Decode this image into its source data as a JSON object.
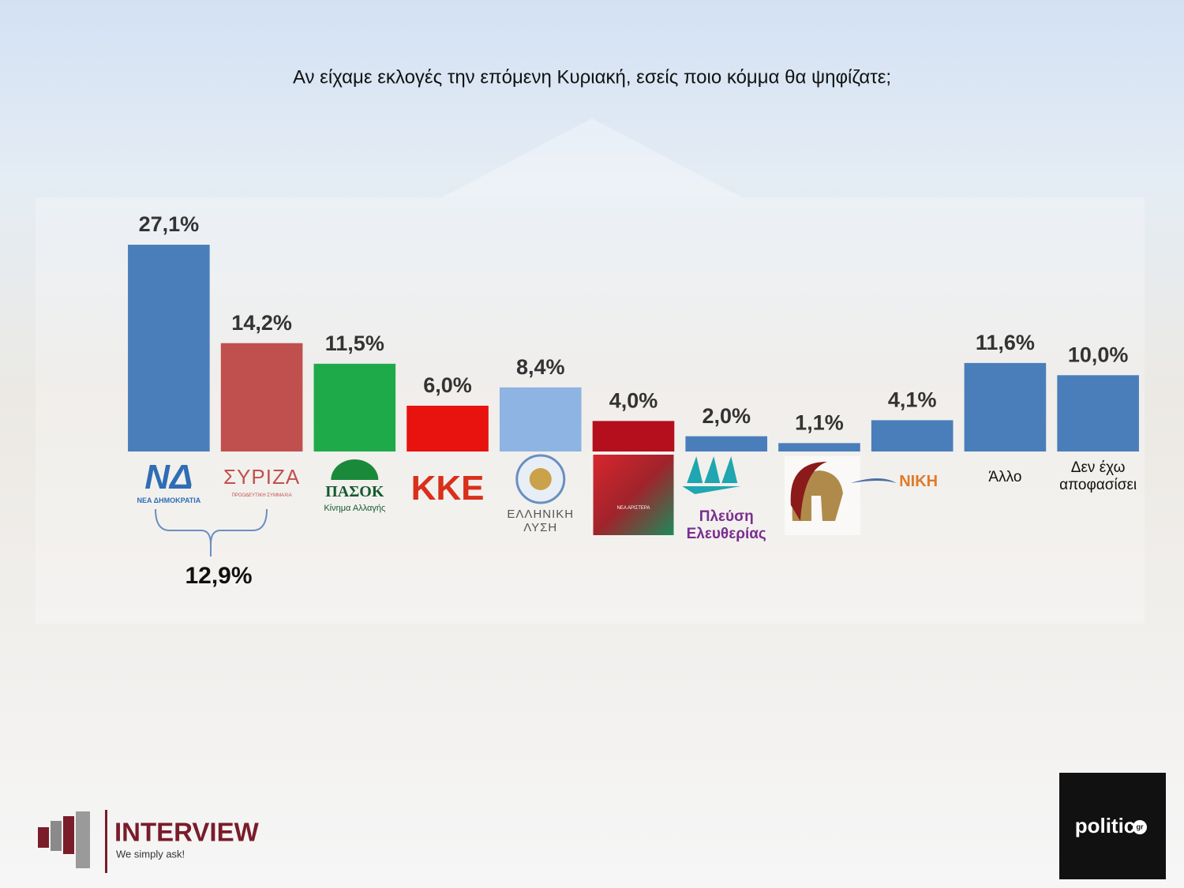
{
  "chart_data": {
    "type": "bar",
    "title": "Αν είχαμε εκλογές την επόμενη Κυριακή, εσείς ποιο κόμμα θα ψηφίζατε;",
    "categories": [
      "ΝΕΑ ΔΗΜΟΚΡΑΤΙΑ",
      "ΣΥΡΙΖΑ",
      "ΠΑΣΟΚ",
      "ΚΚΕ",
      "ΕΛΛΗΝΙΚΗ ΛΥΣΗ",
      "ΝΕΑ ΑΡΙΣΤΕΡΑ",
      "Πλεύση Ελευθερίας",
      null,
      "ΝΙΚΗ",
      "Άλλο",
      "Δεν έχω αποφασίσει"
    ],
    "logo_captions": [
      "ΝΔ",
      "ΠΡΟΟΔΕΥΤΙΚΗ ΣΥΜΜΑΧΙΑ",
      "Κίνημα Αλλαγής",
      null,
      null,
      null,
      null,
      null,
      null,
      null,
      null
    ],
    "values": [
      27.1,
      14.2,
      11.5,
      6.0,
      8.4,
      4.0,
      2.0,
      1.1,
      4.1,
      11.6,
      10.0
    ],
    "value_labels": [
      "27,1%",
      "14,2%",
      "11,5%",
      "6,0%",
      "8,4%",
      "4,0%",
      "2,0%",
      "1,1%",
      "4,1%",
      "11,6%",
      "10,0%"
    ],
    "colors": [
      "#4a7ebb",
      "#c0504d",
      "#1faa4a",
      "#e8120f",
      "#8db4e2",
      "#b50f1e",
      "#4a7ebb",
      "#4a7ebb",
      "#4a7ebb",
      "#4a7ebb",
      "#4a7ebb"
    ],
    "ylim": [
      0,
      30
    ],
    "annotation": {
      "value": 12.9,
      "label": "12,9%"
    }
  },
  "logos": {
    "interview": "INTERVIEW",
    "interview_slogan": "We simply ask!",
    "politic": "politic",
    "politic_suffix": "gr"
  }
}
